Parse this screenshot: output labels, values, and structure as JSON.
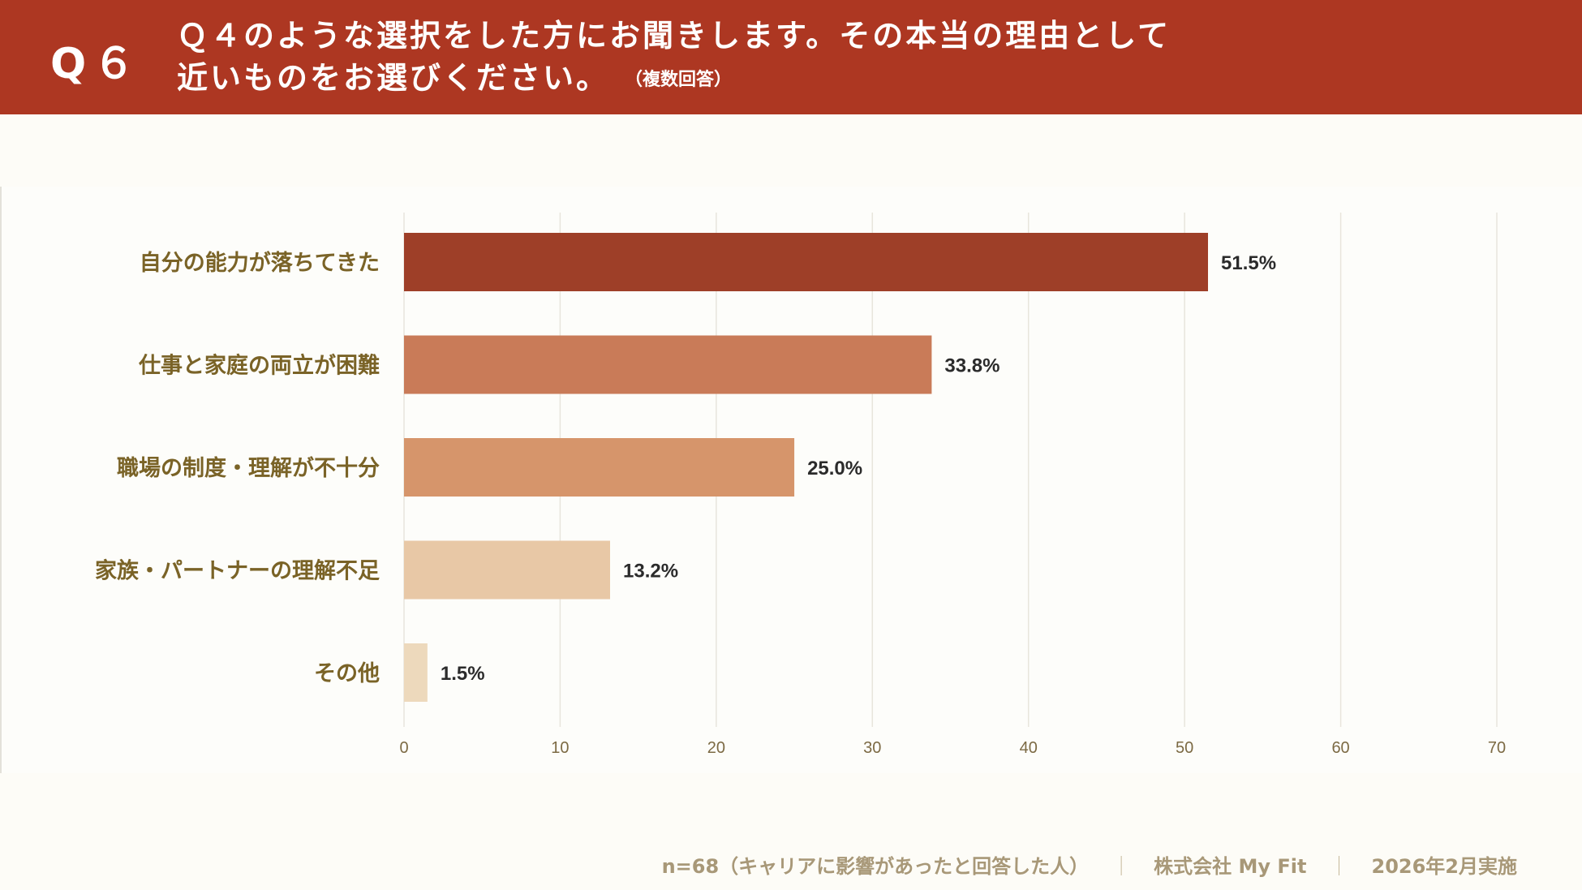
{
  "header": {
    "question_number": "Q６",
    "question_line1": "Ｑ４のような選択をした方にお聞きします。その本当の理由として",
    "question_line2": "近いものをお選びください。",
    "question_note": "（複数回答）"
  },
  "chart_data": {
    "type": "bar",
    "orientation": "horizontal",
    "title": "",
    "categories": [
      "自分の能力が落ちてきた",
      "仕事と家庭の両立が困難",
      "職場の制度・理解が不十分",
      "家族・パートナーの理解不足",
      "その他"
    ],
    "values": [
      51.5,
      33.8,
      25.0,
      13.2,
      1.5
    ],
    "value_labels": [
      "51.5%",
      "33.8%",
      "25.0%",
      "13.2%",
      "1.5%"
    ],
    "bar_colors": [
      "#9e3f28",
      "#c97b58",
      "#d6956b",
      "#e8c8a6",
      "#edd9bc"
    ],
    "xlim": [
      0,
      70
    ],
    "xticks": [
      0,
      10,
      20,
      30,
      40,
      50,
      60,
      70
    ],
    "xtick_labels": [
      "0",
      "10",
      "20",
      "30",
      "40",
      "50",
      "60",
      "70"
    ],
    "xlabel": "",
    "ylabel": "",
    "grid": true
  },
  "footer": {
    "sample": "n=68（キャリアに影響があったと回答した人）",
    "separator": "｜",
    "company": "株式会社 My Fit",
    "date": "2026年2月実施"
  },
  "colors": {
    "header_bg": "#ad3722",
    "category_text": "#7a6327",
    "value_text": "#2b2b2b",
    "tick_text": "#7c6a44",
    "grid": "#e8e5dc"
  }
}
